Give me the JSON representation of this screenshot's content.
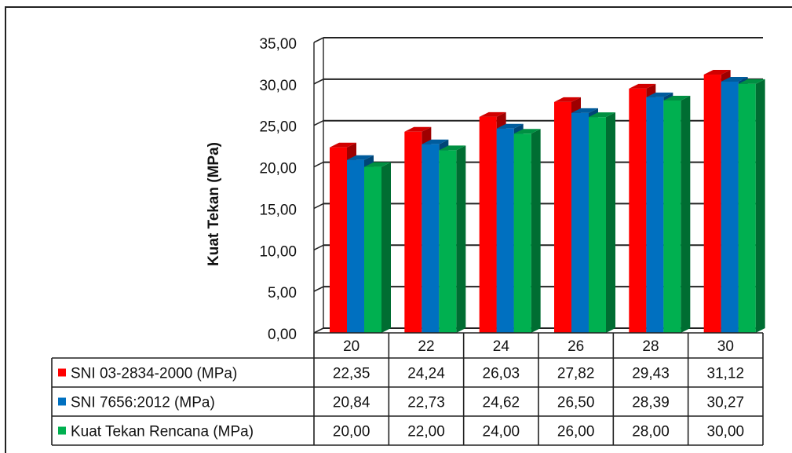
{
  "chart_data": {
    "type": "bar",
    "categories": [
      "20",
      "22",
      "24",
      "26",
      "28",
      "30"
    ],
    "series": [
      {
        "name": "SNI 03-2834-2000 (MPa)",
        "values": [
          22.35,
          24.24,
          26.03,
          27.82,
          29.43,
          31.12
        ],
        "labels": [
          "22,35",
          "24,24",
          "26,03",
          "27,82",
          "29,43",
          "31,12"
        ],
        "color": "#ff0000"
      },
      {
        "name": "SNI 7656:2012 (MPa)",
        "values": [
          20.84,
          22.73,
          24.62,
          26.5,
          28.39,
          30.27
        ],
        "labels": [
          "20,84",
          "22,73",
          "24,62",
          "26,50",
          "28,39",
          "30,27"
        ],
        "color": "#0070c0"
      },
      {
        "name": "Kuat Tekan Rencana (MPa)",
        "values": [
          20.0,
          22.0,
          24.0,
          26.0,
          28.0,
          30.0
        ],
        "labels": [
          "20,00",
          "22,00",
          "24,00",
          "26,00",
          "28,00",
          "30,00"
        ],
        "color": "#00b050"
      }
    ],
    "ylabel": "Kuat Tekan (MPa)",
    "ylim": [
      0,
      35
    ],
    "yticks": [
      0,
      5,
      10,
      15,
      20,
      25,
      30,
      35
    ],
    "ytick_labels": [
      "0,00",
      "5,00",
      "10,00",
      "15,00",
      "20,00",
      "25,00",
      "30,00",
      "35,00"
    ],
    "grid": true,
    "data_table": true
  }
}
